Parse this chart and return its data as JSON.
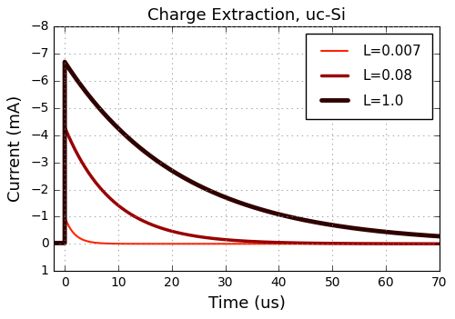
{
  "title": "Charge Extraction, uc-Si",
  "xlabel": "Time (us)",
  "ylabel": "Current (mA)",
  "xlim": [
    -2,
    70
  ],
  "ylim": [
    1,
    -8
  ],
  "yticks": [
    -8,
    -7,
    -6,
    -5,
    -4,
    -3,
    -2,
    -1,
    0,
    1
  ],
  "xticks": [
    0,
    10,
    20,
    30,
    40,
    50,
    60,
    70
  ],
  "series": [
    {
      "label": "L=0.007",
      "color": "#ff2200",
      "linewidth": 1.5,
      "y0": -1.0,
      "tau": 1.8
    },
    {
      "label": "L=0.08",
      "color": "#990000",
      "linewidth": 2.5,
      "y0": -4.3,
      "tau": 9.0
    },
    {
      "label": "L=1.0",
      "color": "#300000",
      "linewidth": 3.5,
      "y0": -6.7,
      "tau": 22.0
    }
  ],
  "background_color": "#ffffff",
  "grid_color": "#888888",
  "grid_style": ":",
  "legend_loc": "upper right",
  "figsize": [
    5.0,
    3.51
  ],
  "dpi": 100
}
